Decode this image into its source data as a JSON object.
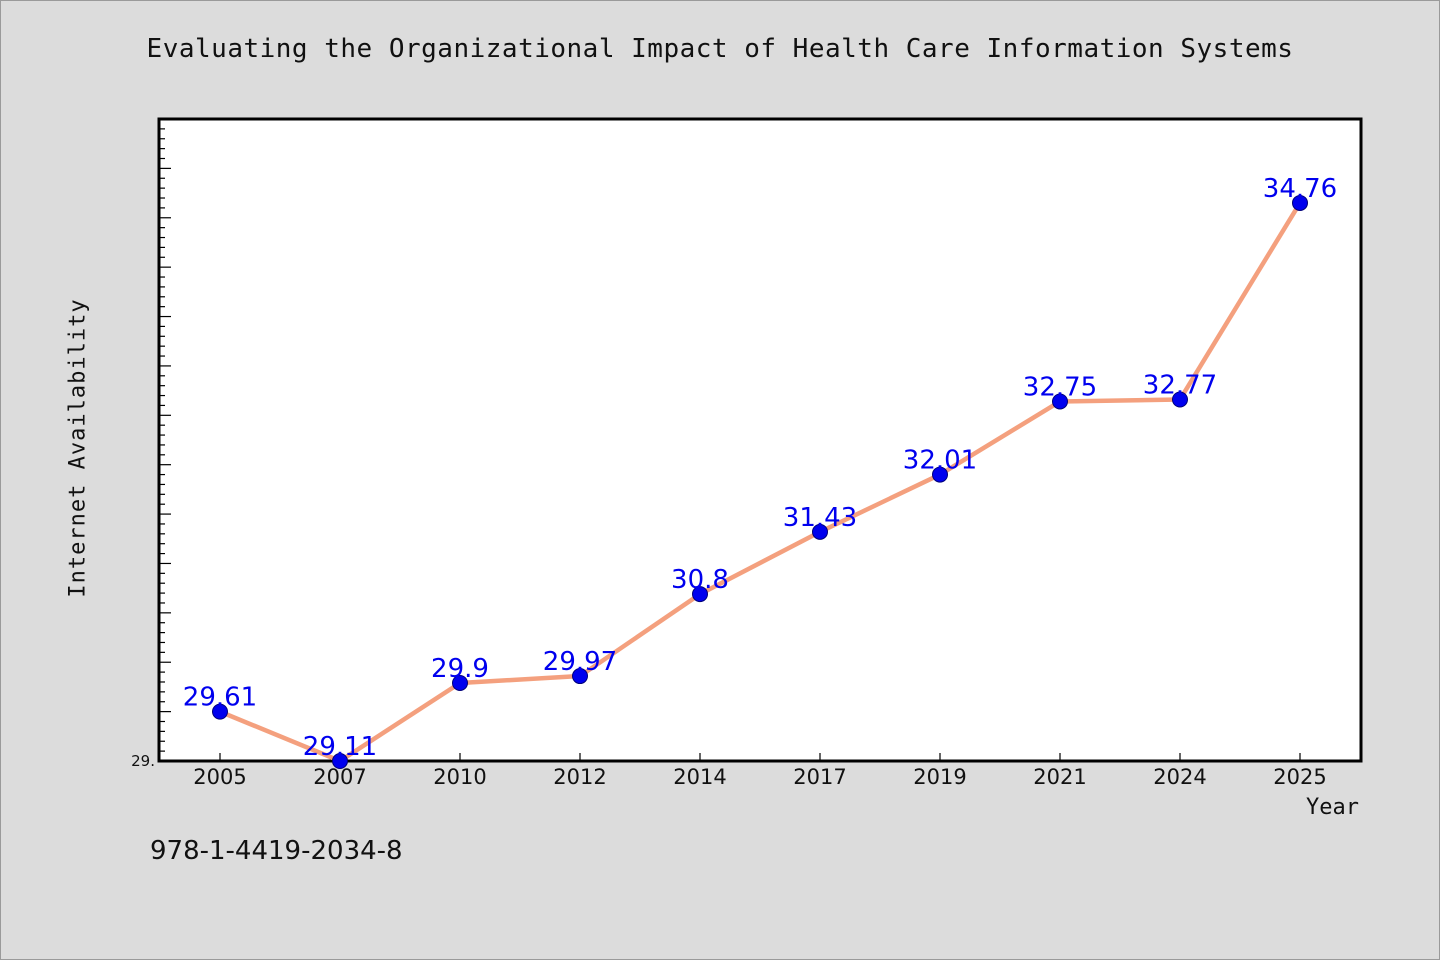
{
  "title": "Evaluating the Organizational Impact of Health Care Information Systems",
  "footer_text": "978-1-4419-2034-8",
  "chart_data": {
    "type": "line",
    "title": "Evaluating the Organizational Impact of Health Care Information Systems",
    "xlabel": "Year",
    "ylabel": "Internet Availability",
    "categories": [
      "2005",
      "2007",
      "2010",
      "2012",
      "2014",
      "2017",
      "2019",
      "2021",
      "2024",
      "2025"
    ],
    "series": [
      {
        "values": [
          29.61,
          29.11,
          29.9,
          29.97,
          30.8,
          31.43,
          32.01,
          32.75,
          32.77,
          34.76
        ],
        "data_labels": [
          "29.61",
          "29.11",
          "29.9",
          "29.97",
          "30.8",
          "31.43",
          "32.01",
          "32.75",
          "32.77",
          "34.76"
        ],
        "line_color": "#f4a07e",
        "marker_color": "#0000ee"
      }
    ],
    "ylim": [
      29.11,
      35.61
    ],
    "y_min_label": "29.",
    "grid": false,
    "legend": "none"
  }
}
